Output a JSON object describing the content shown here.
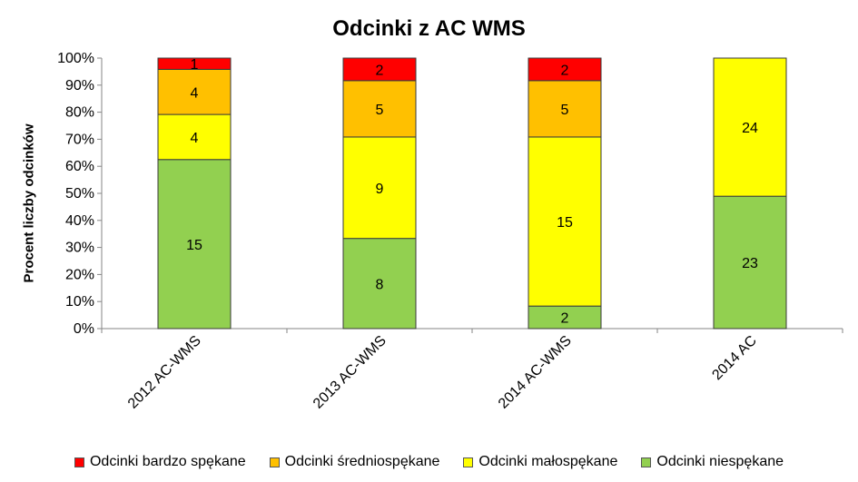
{
  "chart_data": {
    "type": "bar",
    "stacked": "percent",
    "title": "Odcinki z AC WMS",
    "xlabel": "",
    "ylabel": "Procent liczby odcinków",
    "ylim": [
      0,
      100
    ],
    "yticks": [
      "0%",
      "10%",
      "20%",
      "30%",
      "40%",
      "50%",
      "60%",
      "70%",
      "80%",
      "90%",
      "100%"
    ],
    "grid": false,
    "legend_position": "bottom",
    "categories": [
      "2012 AC-WMS",
      "2013 AC-WMS",
      "2014 AC-WMS",
      "2014 AC"
    ],
    "series": [
      {
        "name": "Odcinki niespękane",
        "color": "#92D050",
        "values": [
          15,
          8,
          2,
          23
        ]
      },
      {
        "name": "Odcinki małospękane",
        "color": "#FFFF00",
        "values": [
          4,
          9,
          15,
          24
        ]
      },
      {
        "name": "Odcinki średniospękane",
        "color": "#FFC000",
        "values": [
          4,
          5,
          5,
          0
        ]
      },
      {
        "name": "Odcinki bardzo spękane",
        "color": "#FF0000",
        "values": [
          1,
          2,
          2,
          0
        ]
      }
    ],
    "legend_order": [
      3,
      2,
      1,
      0
    ]
  }
}
